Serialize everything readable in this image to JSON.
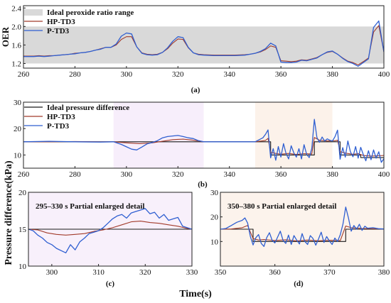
{
  "figure": {
    "y_label": "Pressure difference(kPa)",
    "x_label": "Time(s)"
  },
  "series_colors": {
    "ideal": "#1a1a1a",
    "hp": "#a23b2b",
    "p": "#2f5fd1",
    "band": "#d9d9d9"
  },
  "chart_data": [
    {
      "id": "a",
      "type": "line",
      "caption": "(a)",
      "ylabel": "OER",
      "xlabel": "",
      "xlim": [
        260,
        400
      ],
      "ylim": [
        1.1,
        2.45
      ],
      "x_ticks": [
        260,
        280,
        300,
        320,
        340,
        360,
        380,
        400
      ],
      "y_ticks": [
        1.2,
        1.6,
        2.0,
        2.4
      ],
      "y_tick_labels": [
        "1.2",
        "1.6",
        "2.0",
        "2.4"
      ],
      "band": {
        "name": "Ideal peroxide ratio range",
        "y0": 1.2,
        "y1": 2.0
      },
      "legend": [
        "Ideal peroxide ratio range",
        "HP-TD3",
        "P-TD3"
      ],
      "series": [
        {
          "name": "HP-TD3",
          "color_key": "hp",
          "x": [
            260,
            262,
            264,
            266,
            268,
            270,
            272,
            274,
            276,
            278,
            280,
            282,
            284,
            286,
            288,
            290,
            292,
            294,
            296,
            298,
            300,
            302,
            304,
            306,
            308,
            310,
            312,
            314,
            316,
            318,
            320,
            322,
            324,
            326,
            328,
            330,
            334,
            338,
            342,
            346,
            348,
            350,
            352,
            354,
            356,
            358,
            360,
            362,
            364,
            366,
            368,
            370,
            372,
            374,
            376,
            378,
            380,
            382,
            384,
            386,
            388,
            390,
            392,
            394,
            396,
            398,
            400
          ],
          "y": [
            1.36,
            1.36,
            1.36,
            1.37,
            1.36,
            1.37,
            1.37,
            1.38,
            1.39,
            1.4,
            1.42,
            1.43,
            1.44,
            1.46,
            1.49,
            1.52,
            1.55,
            1.55,
            1.6,
            1.72,
            1.78,
            1.78,
            1.56,
            1.43,
            1.4,
            1.39,
            1.4,
            1.44,
            1.52,
            1.64,
            1.73,
            1.72,
            1.54,
            1.43,
            1.4,
            1.39,
            1.38,
            1.38,
            1.38,
            1.39,
            1.4,
            1.42,
            1.45,
            1.5,
            1.58,
            1.55,
            1.26,
            1.25,
            1.24,
            1.25,
            1.28,
            1.27,
            1.3,
            1.33,
            1.39,
            1.44,
            1.46,
            1.4,
            1.32,
            1.25,
            1.22,
            1.17,
            1.24,
            1.32,
            1.88,
            2.02,
            1.45
          ]
        },
        {
          "name": "P-TD3",
          "color_key": "p",
          "x": [
            260,
            262,
            264,
            266,
            268,
            270,
            272,
            274,
            276,
            278,
            280,
            282,
            284,
            286,
            288,
            290,
            292,
            294,
            296,
            298,
            300,
            302,
            304,
            306,
            308,
            310,
            312,
            314,
            316,
            318,
            320,
            322,
            324,
            326,
            328,
            330,
            334,
            338,
            342,
            346,
            348,
            350,
            352,
            354,
            356,
            358,
            360,
            362,
            364,
            366,
            368,
            370,
            372,
            374,
            376,
            378,
            380,
            382,
            384,
            386,
            388,
            390,
            392,
            394,
            396,
            398,
            400
          ],
          "y": [
            1.35,
            1.35,
            1.35,
            1.36,
            1.35,
            1.36,
            1.37,
            1.38,
            1.39,
            1.4,
            1.41,
            1.43,
            1.44,
            1.46,
            1.49,
            1.51,
            1.55,
            1.55,
            1.62,
            1.79,
            1.86,
            1.84,
            1.56,
            1.42,
            1.39,
            1.38,
            1.39,
            1.44,
            1.54,
            1.68,
            1.78,
            1.76,
            1.55,
            1.43,
            1.39,
            1.38,
            1.37,
            1.37,
            1.37,
            1.38,
            1.4,
            1.42,
            1.46,
            1.52,
            1.64,
            1.58,
            1.23,
            1.22,
            1.22,
            1.23,
            1.27,
            1.26,
            1.29,
            1.32,
            1.39,
            1.45,
            1.47,
            1.4,
            1.31,
            1.24,
            1.2,
            1.14,
            1.22,
            1.3,
            1.98,
            2.12,
            1.45
          ]
        }
      ]
    },
    {
      "id": "b",
      "type": "line",
      "caption": "(b)",
      "xlabel": "",
      "xlim": [
        260,
        400
      ],
      "ylim": [
        5,
        30
      ],
      "x_ticks": [
        260,
        280,
        300,
        320,
        340,
        360,
        380,
        400
      ],
      "y_ticks": [
        10,
        20,
        30
      ],
      "shaded_regions": [
        {
          "x0": 295,
          "x1": 330,
          "color": "#f7eefb"
        },
        {
          "x0": 350,
          "x1": 380,
          "color": "#fcf2ea"
        }
      ],
      "legend": [
        "Ideal pressure difference",
        "HP-TD3",
        "P-TD3"
      ],
      "series": [
        {
          "name": "Ideal pressure difference",
          "color_key": "ideal",
          "step": true,
          "x": [
            260,
            295,
            330,
            355,
            356,
            372,
            373,
            382,
            383,
            390,
            391,
            400
          ],
          "y": [
            15,
            15,
            15,
            15,
            10,
            10,
            15,
            15,
            10,
            10,
            9,
            9
          ]
        },
        {
          "name": "HP-TD3",
          "color_key": "hp",
          "x": [
            260,
            270,
            280,
            290,
            295,
            300,
            305,
            310,
            314,
            318,
            322,
            326,
            330,
            340,
            350,
            354,
            355,
            356,
            358,
            360,
            363,
            366,
            369,
            372,
            373,
            375,
            378,
            381,
            382,
            383,
            385,
            388,
            390,
            392,
            395,
            398,
            400
          ],
          "y": [
            15,
            15,
            15.1,
            15,
            15,
            14.6,
            14.3,
            14.6,
            15.2,
            15.8,
            16.0,
            15.6,
            15,
            15,
            15,
            15.5,
            16.3,
            11.0,
            10.6,
            10.3,
            10.6,
            10.2,
            10.5,
            10.4,
            16.6,
            15.6,
            15.3,
            15.4,
            15.6,
            11.3,
            10.7,
            10.3,
            10.5,
            9.8,
            9.6,
            9.7,
            9.8
          ]
        },
        {
          "name": "P-TD3",
          "color_key": "p",
          "x": [
            260,
            270,
            280,
            290,
            295,
            298,
            300,
            302,
            304,
            306,
            308,
            310,
            312,
            314,
            316,
            318,
            320,
            322,
            324,
            326,
            328,
            330,
            340,
            350,
            353,
            354,
            355,
            356,
            357,
            358,
            359,
            360,
            361,
            362,
            363,
            364,
            365,
            366,
            367,
            368,
            369,
            370,
            371,
            372,
            373,
            374,
            375,
            376,
            377,
            378,
            379,
            380,
            381,
            382,
            383,
            384,
            385,
            386,
            387,
            388,
            389,
            390,
            391,
            392,
            393,
            394,
            395,
            396,
            397,
            398,
            399,
            400
          ],
          "y": [
            15,
            15.2,
            15,
            14.9,
            15,
            14,
            13.1,
            12.2,
            11.9,
            13,
            14.2,
            14.7,
            15.4,
            16.5,
            17,
            17.2,
            17.4,
            17,
            16.5,
            16.2,
            15.4,
            15,
            15,
            15,
            16.5,
            17.8,
            19.5,
            8.9,
            12.4,
            8.0,
            13.2,
            9.2,
            14.3,
            10.5,
            8.5,
            13.5,
            10.8,
            9.2,
            12.4,
            8.5,
            13.9,
            10.2,
            9.0,
            12.5,
            23.5,
            16.6,
            14.8,
            16.8,
            15.3,
            16.1,
            15.6,
            15.3,
            16.9,
            19.4,
            8.4,
            12.8,
            9.2,
            15.3,
            11.2,
            9.3,
            13.2,
            8.8,
            12.9,
            10.2,
            7.8,
            11.6,
            8.2,
            11.9,
            8.8,
            11.2,
            7.2,
            8.6
          ]
        }
      ]
    },
    {
      "id": "c",
      "type": "line",
      "caption": "(c)",
      "title": "295–330 s Partial enlarged detail",
      "xlim": [
        295,
        330
      ],
      "ylim": [
        10,
        20
      ],
      "x_ticks": [
        300,
        310,
        320,
        330
      ],
      "y_ticks": [
        10,
        15,
        20
      ],
      "series": [
        {
          "name": "Ideal pressure difference",
          "color_key": "ideal",
          "step": true,
          "x": [
            295,
            330
          ],
          "y": [
            15,
            15
          ]
        },
        {
          "name": "HP-TD3",
          "color_key": "hp",
          "x": [
            295,
            297,
            299,
            301,
            303,
            305,
            307,
            309,
            311,
            313,
            315,
            317,
            319,
            321,
            323,
            325,
            327,
            329,
            330
          ],
          "y": [
            15,
            14.9,
            14.5,
            14.3,
            14.2,
            14.3,
            14.4,
            14.7,
            14.9,
            15.2,
            15.6,
            16.0,
            16.1,
            15.9,
            15.8,
            15.6,
            15.4,
            15.1,
            15
          ]
        },
        {
          "name": "P-TD3",
          "color_key": "p",
          "x": [
            295,
            296,
            297,
            298,
            299,
            300,
            301,
            302,
            303,
            304,
            305,
            306,
            307,
            308,
            309,
            310,
            311,
            312,
            313,
            314,
            315,
            316,
            317,
            318,
            319,
            320,
            321,
            322,
            323,
            324,
            325,
            326,
            327,
            328,
            329,
            330
          ],
          "y": [
            15,
            14.8,
            14.2,
            13.8,
            13.2,
            12.9,
            12.4,
            12.1,
            11.8,
            12.9,
            12.2,
            13.3,
            13.8,
            14.4,
            14.6,
            14.8,
            15.2,
            15.8,
            16.4,
            16.8,
            17.0,
            16.5,
            17.2,
            17.4,
            17.6,
            17.8,
            17.1,
            17.3,
            16.5,
            17.0,
            16.2,
            16.4,
            16.6,
            15.4,
            15.2,
            15.0
          ]
        }
      ]
    },
    {
      "id": "d",
      "type": "line",
      "caption": "(d)",
      "title": "350–380 s Partial enlarged detail",
      "xlim": [
        350,
        380
      ],
      "ylim": [
        0,
        30
      ],
      "x_ticks": [
        350,
        360,
        370,
        380
      ],
      "y_ticks": [
        10,
        20,
        30
      ],
      "series": [
        {
          "name": "Ideal pressure difference",
          "color_key": "ideal",
          "step": true,
          "x": [
            350,
            355.5,
            356,
            372.5,
            373,
            380
          ],
          "y": [
            15,
            15,
            10,
            10,
            15,
            15
          ]
        },
        {
          "name": "HP-TD3",
          "color_key": "hp",
          "x": [
            350,
            352,
            354,
            355,
            356,
            357,
            358,
            360,
            362,
            364,
            366,
            368,
            370,
            372,
            373,
            374,
            376,
            378,
            380
          ],
          "y": [
            15,
            15.1,
            15.6,
            16.5,
            11.2,
            10.6,
            10.8,
            10.4,
            10.7,
            10.2,
            10.6,
            10.3,
            10.5,
            10.4,
            16.3,
            15.6,
            15.3,
            15.2,
            15.1
          ]
        },
        {
          "name": "P-TD3",
          "color_key": "p",
          "x": [
            350,
            351,
            352,
            353,
            354,
            354.5,
            355,
            355.5,
            356,
            356.5,
            357,
            357.5,
            358,
            358.5,
            359,
            359.5,
            360,
            360.5,
            361,
            361.5,
            362,
            362.5,
            363,
            363.5,
            364,
            364.5,
            365,
            365.5,
            366,
            366.5,
            367,
            367.5,
            368,
            368.5,
            369,
            369.5,
            370,
            370.5,
            371,
            371.5,
            372,
            372.5,
            373,
            373.5,
            374,
            374.5,
            375,
            375.5,
            376,
            376.5,
            377,
            378,
            379,
            380
          ],
          "y": [
            15,
            15.3,
            16.5,
            17.8,
            18.6,
            19.6,
            17.5,
            12.0,
            8.6,
            11.5,
            12.8,
            9.2,
            8.0,
            11.6,
            13.6,
            10.5,
            9.4,
            11.8,
            14.2,
            10.4,
            9.2,
            12.6,
            8.8,
            12.4,
            10.6,
            9.0,
            13.2,
            10.0,
            8.8,
            12.4,
            11.2,
            8.5,
            11.0,
            13.8,
            9.6,
            12.0,
            10.2,
            8.8,
            11.4,
            10.0,
            12.8,
            17.2,
            24.0,
            19.5,
            14.2,
            16.5,
            15.0,
            17.0,
            14.5,
            16.2,
            15.4,
            15.6,
            15.2,
            15.1
          ]
        }
      ]
    }
  ]
}
